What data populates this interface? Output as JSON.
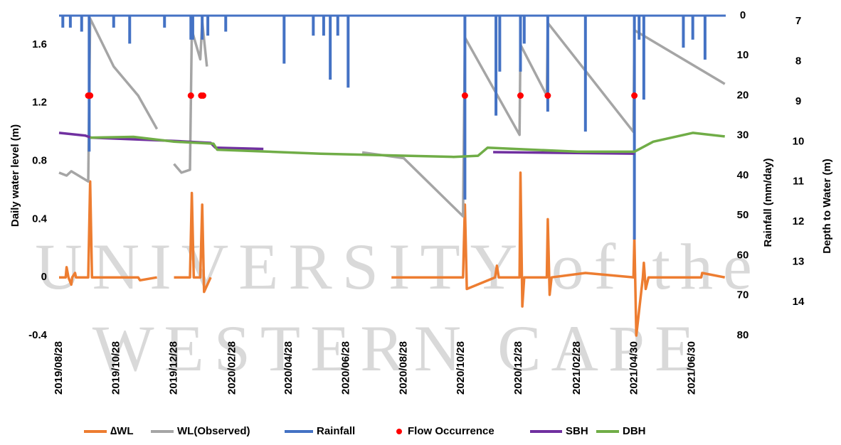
{
  "chart_data": {
    "type": "line",
    "watermark": [
      "UNIVERSITY of the",
      "WESTERN CAPE"
    ],
    "ylabel": "Daily water level (m)",
    "y2label": "Rainfall (mm/day)",
    "y3label": "Depth to Water (m)",
    "xlim": [
      "2019/08/28",
      "2021/08/05"
    ],
    "xticks": [
      "2019/08/28",
      "2019/10/28",
      "2019/12/28",
      "2020/02/28",
      "2020/04/28",
      "2020/06/28",
      "2020/08/28",
      "2020/10/28",
      "2020/12/28",
      "2021/02/28",
      "2021/04/30",
      "2021/06/30"
    ],
    "ylim": [
      -0.4,
      1.8
    ],
    "yticks": [
      -0.4,
      0,
      0.4,
      0.8,
      1.2,
      1.6
    ],
    "y2lim": [
      0,
      80
    ],
    "y2ticks": [
      0,
      10,
      20,
      30,
      40,
      50,
      60,
      70,
      80
    ],
    "y2_reversed": true,
    "y3lim": [
      6.86,
      14.83
    ],
    "y3ticks": [
      7,
      8,
      9,
      10,
      11,
      12,
      13,
      14
    ],
    "y3_reversed": true,
    "legend": "bottom",
    "series": [
      {
        "name": "∆WL",
        "color": "#ed7d31",
        "type": "line",
        "axis": "y",
        "x": [
          "2019/08/28",
          "2019/09/04",
          "2019/09/05",
          "2019/09/07",
          "2019/09/10",
          "2019/09/11",
          "2019/09/14",
          "2019/09/15",
          "2019/09/28",
          "2019/09/30",
          "2019/10/02",
          "2019/11/20",
          "2019/11/22",
          "2019/12/10",
          "2019/12/15",
          "2019/12/28",
          "2020/01/14",
          "2020/01/16",
          "2020/01/18",
          "2020/01/25",
          "2020/01/27",
          "2020/01/29",
          "2020/02/05",
          "2020/02/10",
          "2020/08/15",
          "2020/10/30",
          "2020/11/01",
          "2020/11/03",
          "2020/12/03",
          "2020/12/05",
          "2020/12/07",
          "2020/12/29",
          "2020/12/30",
          "2021/01/01",
          "2021/01/03",
          "2021/01/27",
          "2021/01/28",
          "2021/01/30",
          "2021/02/01",
          "2021/03/09",
          "2021/04/29",
          "2021/04/30",
          "2021/05/02",
          "2021/05/09",
          "2021/05/10",
          "2021/05/12",
          "2021/05/15",
          "2021/07/10",
          "2021/07/11",
          "2021/08/04"
        ],
        "values": [
          0,
          0,
          0.07,
          0,
          -0.05,
          0,
          0.03,
          0,
          0,
          0.66,
          0,
          0,
          -0.02,
          0,
          null,
          0,
          0,
          0.58,
          0,
          0,
          0.5,
          -0.1,
          0,
          null,
          0,
          0,
          0.5,
          -0.08,
          0,
          0.08,
          0,
          0,
          0.72,
          -0.2,
          0,
          0,
          0.4,
          -0.12,
          0,
          0.03,
          0,
          0.28,
          -0.4,
          0,
          0.1,
          -0.08,
          0,
          0,
          0.03,
          0
        ]
      },
      {
        "name": "WL(Observed)",
        "color": "#a5a5a5",
        "type": "line",
        "axis": "y",
        "x": [
          "2019/08/28",
          "2019/09/05",
          "2019/09/10",
          "2019/09/28",
          "2019/09/30",
          "2019/10/25",
          "2019/11/20",
          "2019/12/10",
          "2019/12/15",
          "2019/12/28",
          "2020/01/05",
          "2020/01/14",
          "2020/01/16",
          "2020/01/25",
          "2020/01/27",
          "2020/02/01",
          "2020/02/05",
          "2020/07/15",
          "2020/08/28",
          "2020/10/30",
          "2020/11/01",
          "2020/12/29",
          "2020/12/30",
          "2021/01/27",
          "2021/01/28",
          "2021/04/29",
          "2021/04/30",
          "2021/08/04"
        ],
        "values": [
          0.72,
          0.7,
          0.73,
          0.66,
          1.78,
          1.45,
          1.25,
          1.02,
          null,
          0.78,
          0.72,
          0.74,
          1.7,
          1.5,
          1.76,
          1.45,
          null,
          0.86,
          0.82,
          0.42,
          1.65,
          0.98,
          1.6,
          1.25,
          1.75,
          1.0,
          1.7,
          1.33
        ]
      },
      {
        "name": "Rainfall",
        "color": "#4472c4",
        "type": "bar",
        "axis": "y2",
        "x": [
          "2019/09/01",
          "2019/09/09",
          "2019/09/21",
          "2019/09/29",
          "2019/10/25",
          "2019/11/11",
          "2019/12/18",
          "2020/01/15",
          "2020/01/17",
          "2020/01/27",
          "2020/02/02",
          "2020/02/21",
          "2020/04/23",
          "2020/05/24",
          "2020/06/04",
          "2020/06/11",
          "2020/06/19",
          "2020/06/30",
          "2020/11/01",
          "2020/12/04",
          "2020/12/08",
          "2020/12/30",
          "2021/01/03",
          "2021/01/28",
          "2021/03/09",
          "2021/04/30",
          "2021/05/05",
          "2021/05/10",
          "2021/06/21",
          "2021/07/01",
          "2021/07/14"
        ],
        "values": [
          3,
          3,
          4,
          34,
          3,
          7,
          3,
          6,
          6,
          6,
          5,
          4,
          12,
          5,
          5,
          16,
          5,
          18,
          46,
          25,
          14,
          14,
          7,
          24,
          29,
          56,
          6,
          21,
          8,
          6,
          11
        ]
      },
      {
        "name": "Flow Occurrence",
        "color": "#ff0000",
        "type": "scatter",
        "axis": "y",
        "x": [
          "2019/09/28",
          "2019/09/30",
          "2020/01/15",
          "2020/01/26",
          "2020/01/28",
          "2020/11/01",
          "2020/12/30",
          "2021/01/28",
          "2021/04/30"
        ],
        "values": [
          1.25,
          1.25,
          1.25,
          1.25,
          1.25,
          1.25,
          1.25,
          1.25,
          1.25
        ]
      },
      {
        "name": "SBH",
        "color": "#7030a0",
        "type": "line",
        "axis": "y3",
        "x": [
          "2019/08/28",
          "2019/09/25",
          "2019/10/01",
          "2019/12/28",
          "2020/02/05",
          "2020/02/10",
          "2020/04/01",
          "2020/04/05",
          "2020/12/01",
          "2021/04/30"
        ],
        "values": [
          9.78,
          9.85,
          9.9,
          9.98,
          10.03,
          10.15,
          10.18,
          null,
          10.26,
          10.3
        ]
      },
      {
        "name": "DBH",
        "color": "#70ad47",
        "type": "line",
        "axis": "y3",
        "x": [
          "2019/09/30",
          "2019/11/15",
          "2019/12/28",
          "2020/02/08",
          "2020/02/12",
          "2020/06/01",
          "2020/10/20",
          "2020/11/15",
          "2020/11/25",
          "2021/03/01",
          "2021/04/30",
          "2021/05/20",
          "2021/07/01",
          "2021/08/04"
        ],
        "values": [
          9.9,
          9.88,
          10.0,
          10.05,
          10.2,
          10.3,
          10.38,
          10.35,
          10.15,
          10.25,
          10.25,
          10.0,
          9.78,
          9.87
        ]
      }
    ]
  }
}
